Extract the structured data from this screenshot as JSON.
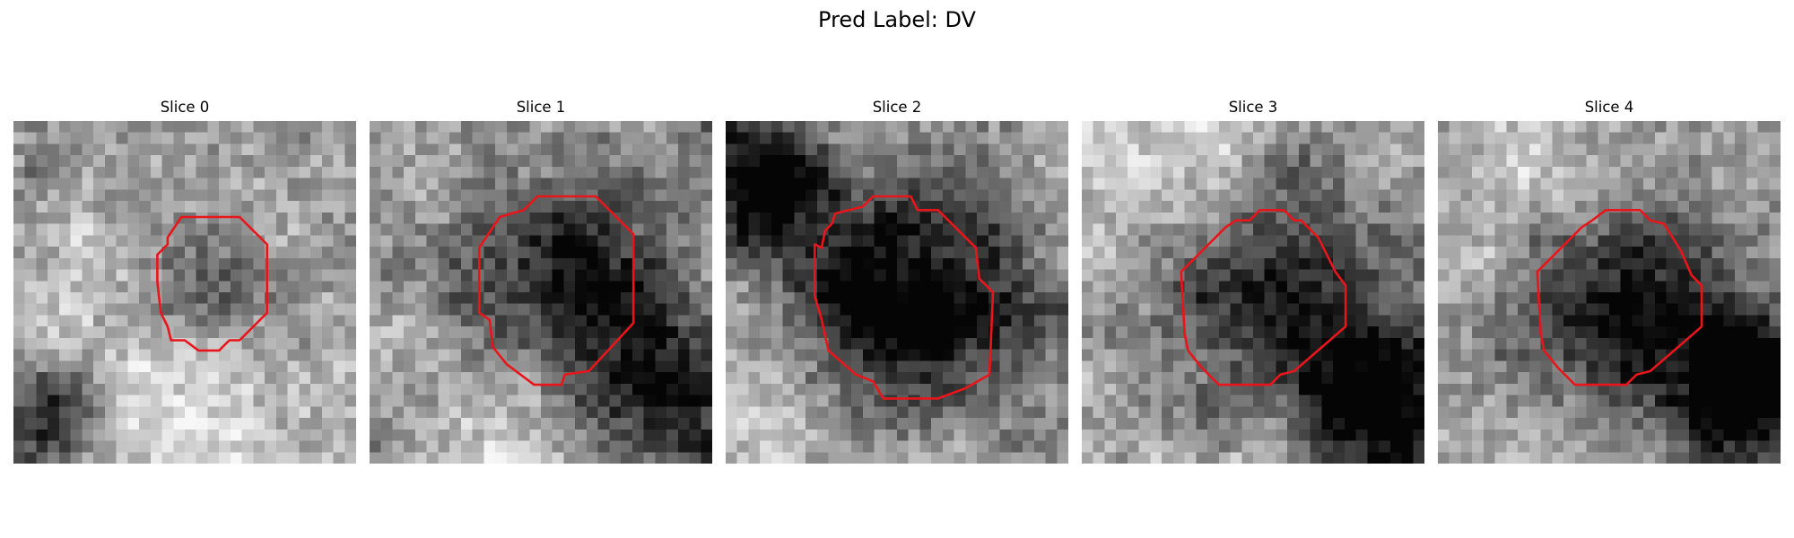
{
  "figure": {
    "title": "Pred Label: DV"
  },
  "outline_color": "#e8161b",
  "panels": [
    {
      "label": "Slice 0",
      "image": "grayscale-microscopy-slice-with-red-contour",
      "seed": 11,
      "blob": [
        0.58,
        0.52,
        0.16,
        0.4
      ],
      "dark": [
        0.1,
        0.85,
        0.12,
        0.55
      ],
      "bright": [
        0.5,
        0.8,
        0.3,
        0.45
      ]
    },
    {
      "label": "Slice 1",
      "image": "grayscale-microscopy-slice-with-red-contour",
      "seed": 23,
      "blob": [
        0.56,
        0.49,
        0.22,
        0.62
      ],
      "dark": [
        0.85,
        0.85,
        0.18,
        0.7
      ],
      "bright": [
        0.5,
        0.9,
        0.28,
        0.45
      ]
    },
    {
      "label": "Slice 2",
      "image": "grayscale-microscopy-slice-with-red-contour",
      "seed": 37,
      "blob": [
        0.52,
        0.55,
        0.25,
        0.78
      ],
      "dark": [
        0.1,
        0.2,
        0.14,
        0.65
      ],
      "bright": [
        0.2,
        0.88,
        0.25,
        0.45
      ]
    },
    {
      "label": "Slice 3",
      "image": "grayscale-microscopy-slice-with-red-contour",
      "seed": 41,
      "blob": [
        0.54,
        0.5,
        0.22,
        0.58
      ],
      "dark": [
        0.88,
        0.8,
        0.16,
        0.75
      ],
      "bright": [
        0.2,
        0.15,
        0.25,
        0.4
      ]
    },
    {
      "label": "Slice 4",
      "image": "grayscale-microscopy-slice-with-red-contour",
      "seed": 53,
      "blob": [
        0.54,
        0.5,
        0.22,
        0.6
      ],
      "dark": [
        0.9,
        0.78,
        0.16,
        0.78
      ],
      "bright": [
        0.3,
        0.12,
        0.25,
        0.4
      ]
    }
  ]
}
